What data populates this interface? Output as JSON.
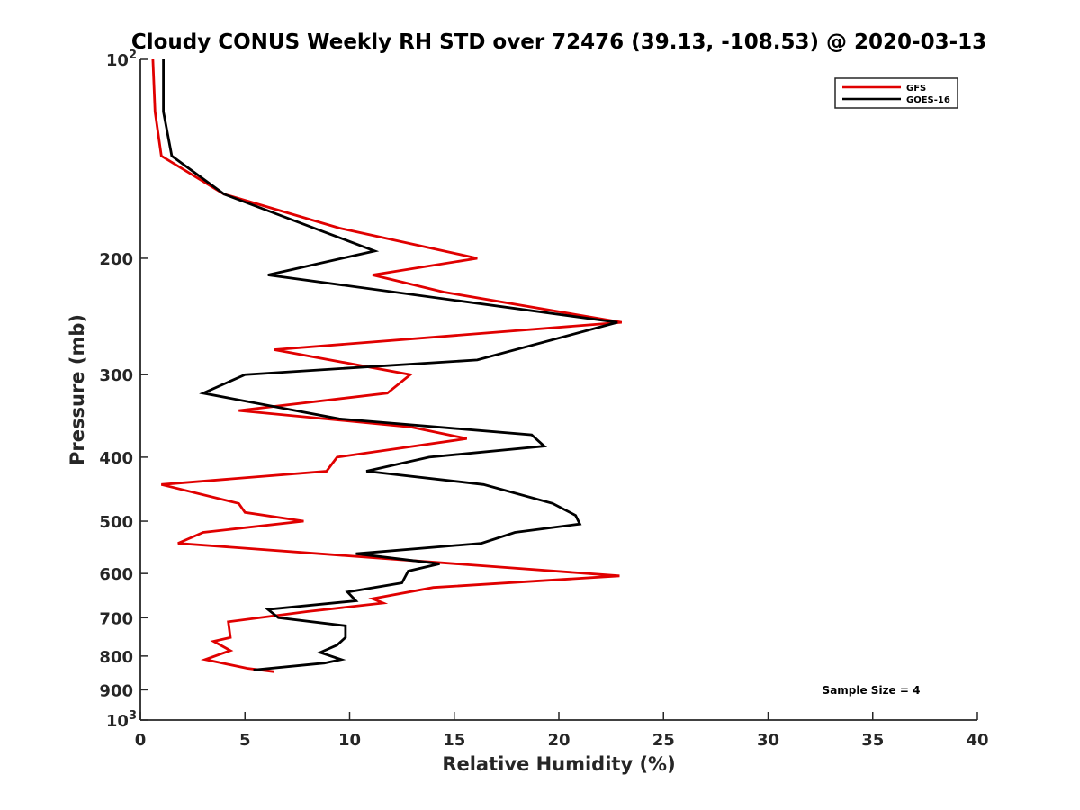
{
  "chart_data": {
    "type": "line",
    "title": "Cloudy CONUS Weekly RH STD over 72476 (39.13, -108.53) @ 2020-03-13",
    "xlabel": "Relative Humidity (%)",
    "ylabel": "Pressure (mb)",
    "xlim": [
      0,
      40
    ],
    "ylim": [
      100,
      1000
    ],
    "y_scale": "log",
    "y_reversed": true,
    "grid": false,
    "legend_position": "top-right",
    "x_ticks": [
      "0",
      "5",
      "10",
      "15",
      "20",
      "25",
      "30",
      "35",
      "40"
    ],
    "y_ticks": [
      {
        "value": 100,
        "base": "10",
        "exp": "2"
      },
      {
        "value": 200,
        "label": "200"
      },
      {
        "value": 300,
        "label": "300"
      },
      {
        "value": 400,
        "label": "400"
      },
      {
        "value": 500,
        "label": "500"
      },
      {
        "value": 600,
        "label": "600"
      },
      {
        "value": 700,
        "label": "700"
      },
      {
        "value": 800,
        "label": "800"
      },
      {
        "value": 900,
        "label": "900"
      },
      {
        "value": 1000,
        "base": "10",
        "exp": "3"
      }
    ],
    "annotation": "Sample Size = 4",
    "series": [
      {
        "name": "GFS",
        "color": "#e00000",
        "points": [
          [
            0.6,
            100
          ],
          [
            0.7,
            120
          ],
          [
            1.0,
            140
          ],
          [
            4.0,
            160
          ],
          [
            9.5,
            180
          ],
          [
            16.1,
            200
          ],
          [
            11.1,
            212
          ],
          [
            14.5,
            225
          ],
          [
            23.0,
            250
          ],
          [
            6.4,
            275
          ],
          [
            12.9,
            300
          ],
          [
            11.8,
            320
          ],
          [
            4.7,
            340
          ],
          [
            12.9,
            360
          ],
          [
            15.6,
            375
          ],
          [
            9.4,
            400
          ],
          [
            8.9,
            420
          ],
          [
            1.0,
            440
          ],
          [
            4.7,
            470
          ],
          [
            5.0,
            485
          ],
          [
            7.8,
            500
          ],
          [
            3.0,
            520
          ],
          [
            1.8,
            540
          ],
          [
            22.9,
            605
          ],
          [
            14.0,
            630
          ],
          [
            11.1,
            655
          ],
          [
            11.6,
            665
          ],
          [
            8.0,
            685
          ],
          [
            4.2,
            710
          ],
          [
            4.3,
            750
          ],
          [
            3.5,
            760
          ],
          [
            4.3,
            785
          ],
          [
            3.1,
            810
          ],
          [
            5.1,
            835
          ],
          [
            6.4,
            845
          ]
        ]
      },
      {
        "name": "GOES-16",
        "color": "#000000",
        "points": [
          [
            1.1,
            100
          ],
          [
            1.1,
            120
          ],
          [
            1.5,
            140
          ],
          [
            4.0,
            160
          ],
          [
            11.2,
            195
          ],
          [
            6.1,
            212
          ],
          [
            22.8,
            250
          ],
          [
            16.1,
            285
          ],
          [
            5.0,
            300
          ],
          [
            3.0,
            320
          ],
          [
            9.5,
            350
          ],
          [
            18.7,
            370
          ],
          [
            19.3,
            385
          ],
          [
            13.8,
            400
          ],
          [
            10.8,
            420
          ],
          [
            16.4,
            440
          ],
          [
            19.7,
            470
          ],
          [
            20.8,
            490
          ],
          [
            21.0,
            505
          ],
          [
            17.9,
            520
          ],
          [
            16.3,
            540
          ],
          [
            10.3,
            560
          ],
          [
            14.3,
            580
          ],
          [
            12.8,
            595
          ],
          [
            12.5,
            620
          ],
          [
            9.9,
            640
          ],
          [
            10.3,
            660
          ],
          [
            6.1,
            680
          ],
          [
            6.6,
            700
          ],
          [
            9.8,
            720
          ],
          [
            9.8,
            750
          ],
          [
            9.4,
            770
          ],
          [
            8.6,
            790
          ],
          [
            9.6,
            810
          ],
          [
            8.8,
            820
          ],
          [
            5.4,
            840
          ]
        ]
      }
    ]
  }
}
